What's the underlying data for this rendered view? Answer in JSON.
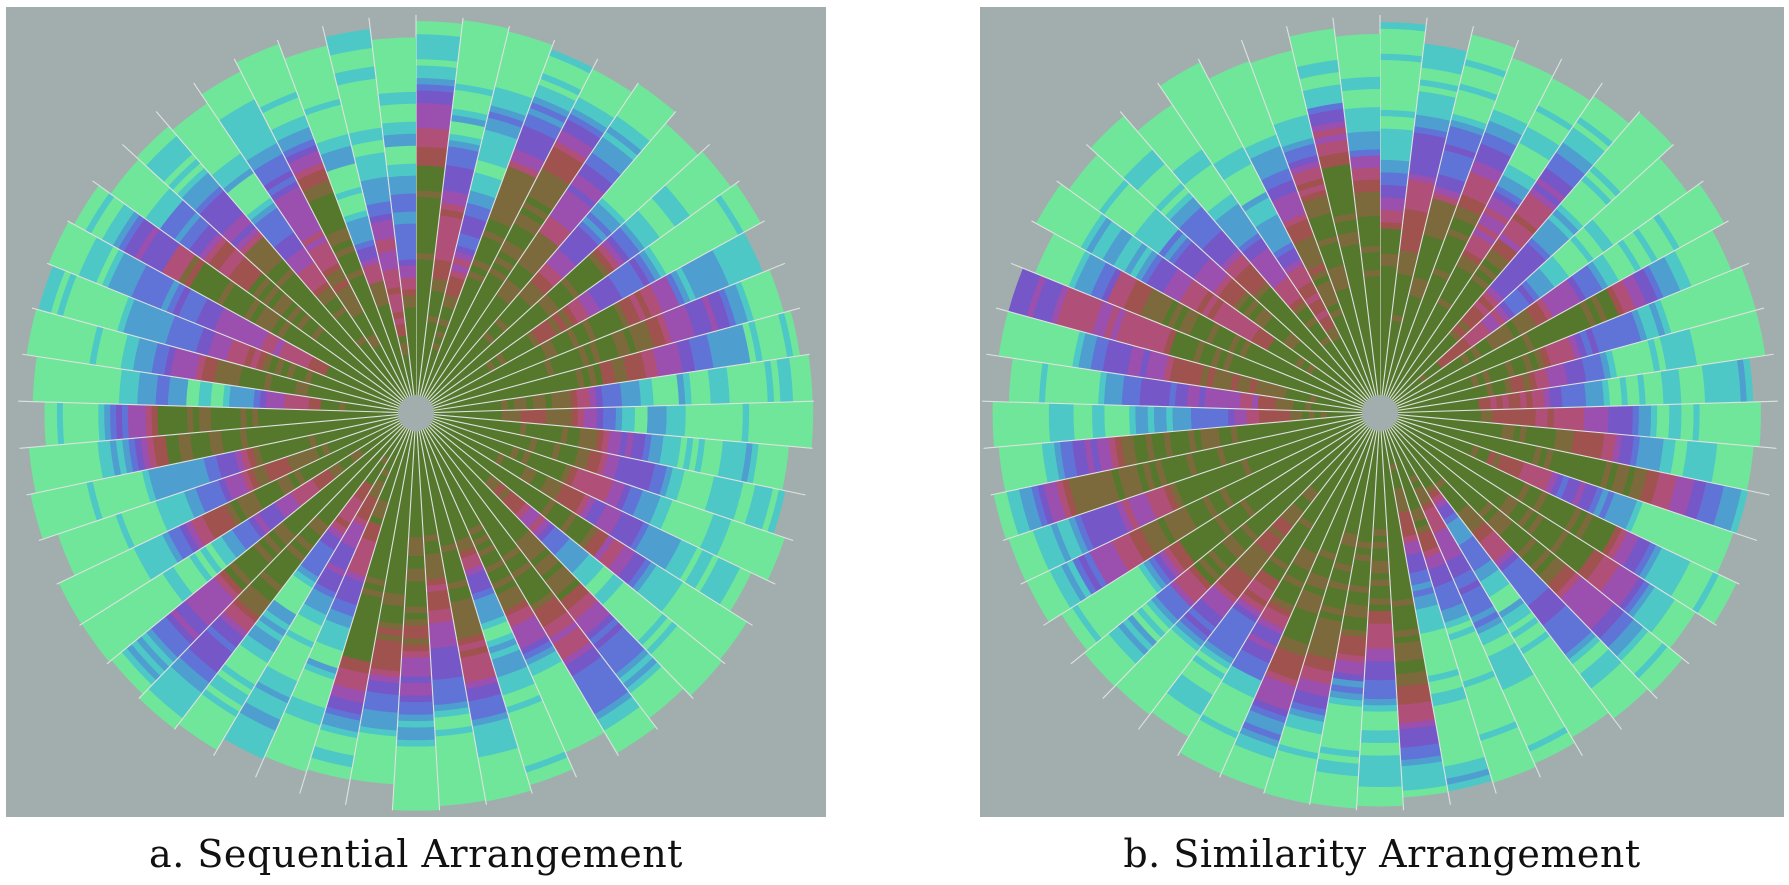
{
  "figure": {
    "panels": [
      {
        "id": "a",
        "caption": "a. Sequential Arrangement",
        "wedge_count": 53,
        "ring_count": 60,
        "seed": 17
      },
      {
        "id": "b",
        "caption": "b. Similarity Arrangement",
        "wedge_count": 53,
        "ring_count": 60,
        "seed": 91
      }
    ]
  },
  "palette": {
    "background": "#a2aeae",
    "separator": "#dde2e0",
    "center": "#a2aeae",
    "colors": [
      "#55782c",
      "#7c6a3c",
      "#a0524e",
      "#b04f78",
      "#9b4fae",
      "#7657c8",
      "#5f74d6",
      "#4f9ed0",
      "#4ec8c6",
      "#6fe69a"
    ]
  }
}
